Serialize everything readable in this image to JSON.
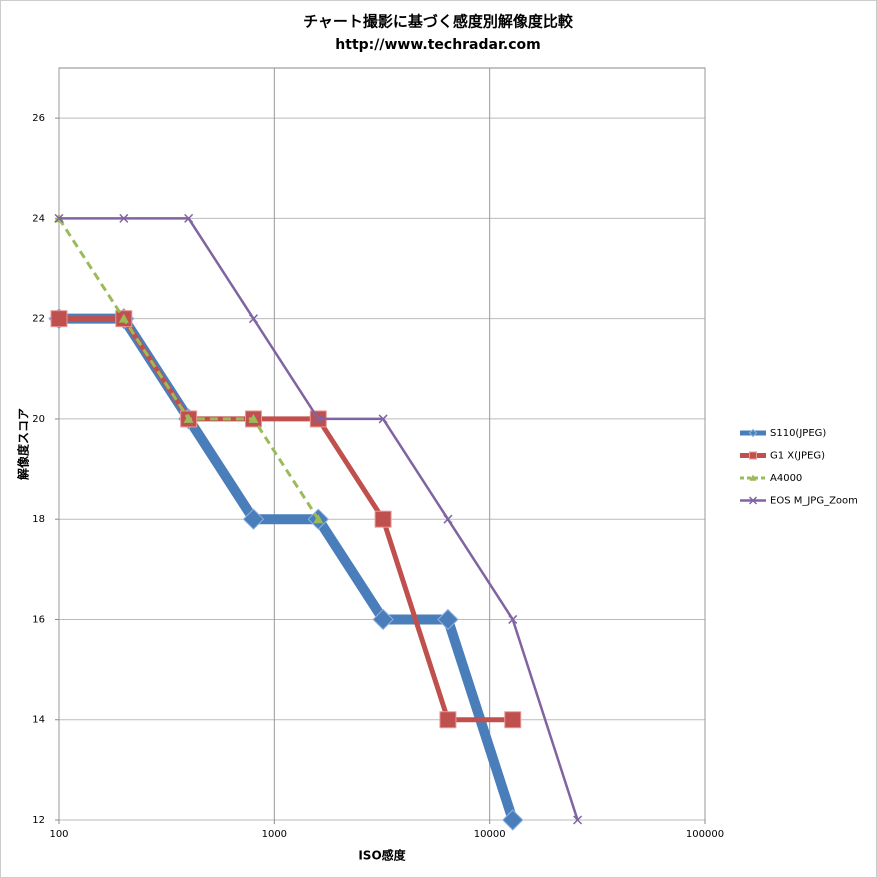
{
  "chart_data": {
    "type": "line",
    "title": "チャート撮影に基づく感度別解像度比較",
    "subtitle": "http://www.techradar.com",
    "x_label": "ISO感度",
    "y_label": "解像度スコア",
    "xscale": "log",
    "xlim": [
      100,
      100000
    ],
    "xticks": [
      100,
      1000,
      10000,
      100000
    ],
    "ylim": [
      12,
      27
    ],
    "yticks": [
      12,
      14,
      16,
      18,
      20,
      22,
      24,
      26
    ],
    "grid": true,
    "legend": "right",
    "series": [
      {
        "name": "S110(JPEG)",
        "color": "#4a7ebb",
        "marker": "diamond",
        "x": [
          100,
          200,
          400,
          800,
          1600,
          3200,
          6400,
          12800
        ],
        "values": [
          22,
          22,
          20,
          18,
          18,
          16,
          16,
          12
        ]
      },
      {
        "name": "G1 X(JPEG)",
        "color": "#c0504d",
        "marker": "square",
        "x": [
          100,
          200,
          400,
          800,
          1600,
          3200,
          6400,
          12800
        ],
        "values": [
          22,
          22,
          20,
          20,
          20,
          18,
          14,
          14
        ]
      },
      {
        "name": "A4000",
        "color": "#9bbb59",
        "marker": "triangle",
        "x": [
          100,
          200,
          400,
          800,
          1600
        ],
        "values": [
          24,
          22,
          20,
          20,
          18
        ]
      },
      {
        "name": "EOS M_JPG_Zoom",
        "color": "#8064a2",
        "marker": "x",
        "x": [
          100,
          200,
          400,
          800,
          1600,
          3200,
          6400,
          12800,
          25600
        ],
        "values": [
          24,
          24,
          24,
          22,
          20,
          20,
          18,
          16,
          12
        ]
      }
    ]
  }
}
